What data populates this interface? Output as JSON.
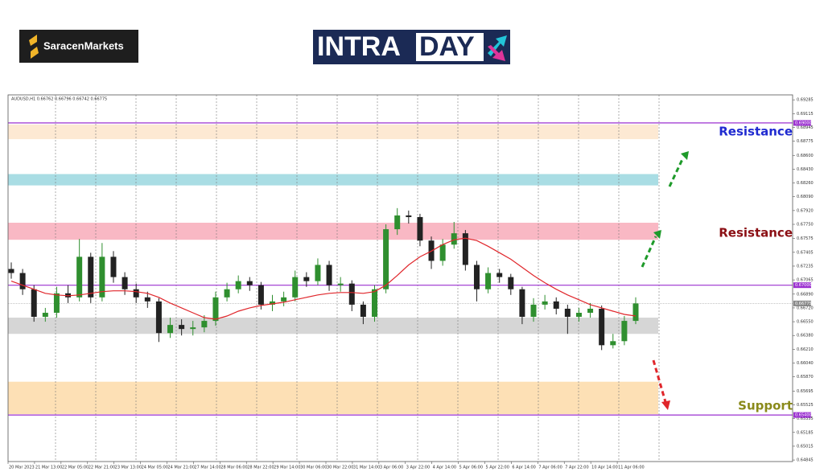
{
  "header": {
    "logo": "SaracenMarkets",
    "badge_left": "INTRA",
    "badge_right": "DAY"
  },
  "chart_data": {
    "type": "candlestick",
    "symbol_info": "AUDUSD,H1 0.66762 0.66796 0.66742 0.66775",
    "open": [
      0.672,
      0.6715,
      0.6695,
      0.6661,
      0.6666,
      0.669,
      0.6685,
      0.6735,
      0.6685,
      0.6735,
      0.671,
      0.6695,
      0.6685,
      0.668,
      0.6641,
      0.6651,
      0.6646,
      0.6648,
      0.6656,
      0.6685,
      0.6695,
      0.6705,
      0.67,
      0.6676,
      0.668,
      0.6685,
      0.671,
      0.6705,
      0.6725,
      0.67,
      0.6702,
      0.6676,
      0.6661,
      0.6695,
      0.6769,
      0.6786,
      0.6784,
      0.6755,
      0.673,
      0.675,
      0.6764,
      0.6725,
      0.6695,
      0.6715,
      0.671,
      0.6695,
      0.6661,
      0.6676,
      0.668,
      0.6671,
      0.6661,
      0.6666,
      0.6671,
      0.6626,
      0.6631,
      0.6656
    ],
    "high": [
      0.6728,
      0.672,
      0.67,
      0.6672,
      0.6698,
      0.67,
      0.6757,
      0.674,
      0.6752,
      0.6742,
      0.6716,
      0.6702,
      0.6692,
      0.6684,
      0.666,
      0.6658,
      0.6656,
      0.6663,
      0.6692,
      0.6703,
      0.6712,
      0.671,
      0.6704,
      0.6688,
      0.6692,
      0.6718,
      0.6716,
      0.6733,
      0.673,
      0.671,
      0.6706,
      0.668,
      0.67,
      0.6775,
      0.6795,
      0.6792,
      0.6788,
      0.676,
      0.6757,
      0.6778,
      0.6768,
      0.673,
      0.6722,
      0.672,
      0.6714,
      0.6698,
      0.6684,
      0.6688,
      0.6685,
      0.6676,
      0.6672,
      0.6678,
      0.6675,
      0.664,
      0.6662,
      0.6685
    ],
    "low": [
      0.6708,
      0.6688,
      0.6655,
      0.6655,
      0.666,
      0.6678,
      0.668,
      0.6678,
      0.668,
      0.6703,
      0.6688,
      0.6678,
      0.6672,
      0.663,
      0.6635,
      0.6638,
      0.6638,
      0.6642,
      0.665,
      0.668,
      0.669,
      0.6693,
      0.667,
      0.6668,
      0.6674,
      0.668,
      0.6698,
      0.67,
      0.6693,
      0.6692,
      0.6668,
      0.6652,
      0.6655,
      0.669,
      0.6762,
      0.6776,
      0.6748,
      0.672,
      0.6724,
      0.6745,
      0.6718,
      0.668,
      0.669,
      0.6703,
      0.6688,
      0.6652,
      0.6655,
      0.667,
      0.6664,
      0.664,
      0.6655,
      0.666,
      0.662,
      0.6622,
      0.6626,
      0.6652
    ],
    "close": [
      0.6715,
      0.6695,
      0.6661,
      0.6666,
      0.669,
      0.6685,
      0.6735,
      0.6685,
      0.6735,
      0.671,
      0.6695,
      0.6685,
      0.668,
      0.6641,
      0.6651,
      0.6646,
      0.6648,
      0.6656,
      0.6685,
      0.6695,
      0.6705,
      0.67,
      0.6676,
      0.668,
      0.6685,
      0.671,
      0.6705,
      0.6725,
      0.67,
      0.6702,
      0.6676,
      0.6661,
      0.6695,
      0.6769,
      0.6786,
      0.6784,
      0.6755,
      0.673,
      0.675,
      0.6764,
      0.6725,
      0.6695,
      0.6715,
      0.671,
      0.6695,
      0.6661,
      0.6676,
      0.668,
      0.6671,
      0.6661,
      0.6666,
      0.6671,
      0.6626,
      0.6631,
      0.6656,
      0.66775
    ],
    "up_color": "#2f8f2f",
    "down_color": "#222222",
    "ma": {
      "color": "#e0262b",
      "values": [
        0.6705,
        0.67,
        0.6695,
        0.669,
        0.6688,
        0.6687,
        0.6688,
        0.669,
        0.6692,
        0.6693,
        0.6693,
        0.6692,
        0.669,
        0.6685,
        0.6678,
        0.6672,
        0.6666,
        0.666,
        0.6658,
        0.6662,
        0.6668,
        0.6672,
        0.6675,
        0.6677,
        0.6679,
        0.6682,
        0.6685,
        0.6688,
        0.669,
        0.6691,
        0.6691,
        0.669,
        0.6692,
        0.67,
        0.6712,
        0.6725,
        0.6735,
        0.6742,
        0.675,
        0.6756,
        0.6758,
        0.6755,
        0.6748,
        0.674,
        0.6732,
        0.6722,
        0.6712,
        0.6703,
        0.6695,
        0.6688,
        0.6682,
        0.6676,
        0.6672,
        0.6668,
        0.6664,
        0.6662
      ]
    },
    "x_labels": [
      "20 Mar 2023",
      "21 Mar 13:00",
      "22 Mar 05:00",
      "22 Mar 21:00",
      "23 Mar 13:00",
      "24 Mar 05:00",
      "24 Mar 21:00",
      "27 Mar 14:00",
      "28 Mar 06:00",
      "28 Mar 22:00",
      "29 Mar 14:00",
      "30 Mar 06:00",
      "30 Mar 22:00",
      "31 Mar 14:00",
      "3 Apr 06:00",
      "3 Apr 22:00",
      "4 Apr 14:00",
      "5 Apr 06:00",
      "5 Apr 22:00",
      "6 Apr 14:00",
      "7 Apr 06:00",
      "7 Apr 22:00",
      "10 Apr 14:00",
      "11 Apr 06:00"
    ],
    "ylim": [
      0.64826,
      0.69346
    ],
    "yticks": [
      0.69285,
      0.69115,
      0.68945,
      0.68775,
      {
        "value": 0.686,
        "label": "0.68600"
      },
      {
        "value": 0.6843,
        "label": "0.68430"
      },
      {
        "value": 0.6826,
        "label": "0.68260"
      },
      {
        "value": 0.6809,
        "label": "0.68090"
      },
      {
        "value": 0.6792,
        "label": "0.67920"
      },
      {
        "value": 0.6775,
        "label": "0.67750"
      },
      0.67575,
      0.67405,
      0.67235,
      0.67065,
      {
        "value": 0.6689,
        "label": "0.66890"
      },
      {
        "value": 0.6672,
        "label": "0.66720"
      },
      {
        "value": 0.6655,
        "label": "0.66550"
      },
      {
        "value": 0.6638,
        "label": "0.66380"
      },
      {
        "value": 0.6621,
        "label": "0.66210"
      },
      {
        "value": 0.6604,
        "label": "0.66040"
      },
      {
        "value": 0.6587,
        "label": "0.65870"
      },
      0.65695,
      0.65525,
      0.65355,
      0.65185,
      0.65015,
      0.64845
    ],
    "zones": [
      {
        "from": 0.688,
        "to": 0.6898,
        "color": "#fde9d3"
      },
      {
        "from": 0.6823,
        "to": 0.6837,
        "color": "#a9dde4"
      },
      {
        "from": 0.6756,
        "to": 0.6777,
        "color": "#f9b8c4"
      },
      {
        "from": 0.664,
        "to": 0.666,
        "color": "#d6d6d6"
      },
      {
        "from": 0.6541,
        "to": 0.6581,
        "color": "#fde0b5"
      }
    ],
    "levels": [
      {
        "value": 0.69,
        "label": "0.69000",
        "color": "#9b30d0"
      },
      {
        "value": 0.67,
        "label": "0.67000",
        "color": "#9b30d0"
      },
      {
        "value": 0.654,
        "label": "0.65400",
        "color": "#9b30d0"
      }
    ],
    "current_price": {
      "value": 0.66775,
      "label": "0.66775",
      "color": "#888888"
    },
    "annotations": [
      {
        "text": "Resistance",
        "color": "#1f2ad0"
      },
      {
        "text": "Resistance",
        "color": "#8b0f14"
      },
      {
        "text": "Support",
        "color": "#8a8a1a"
      }
    ]
  }
}
